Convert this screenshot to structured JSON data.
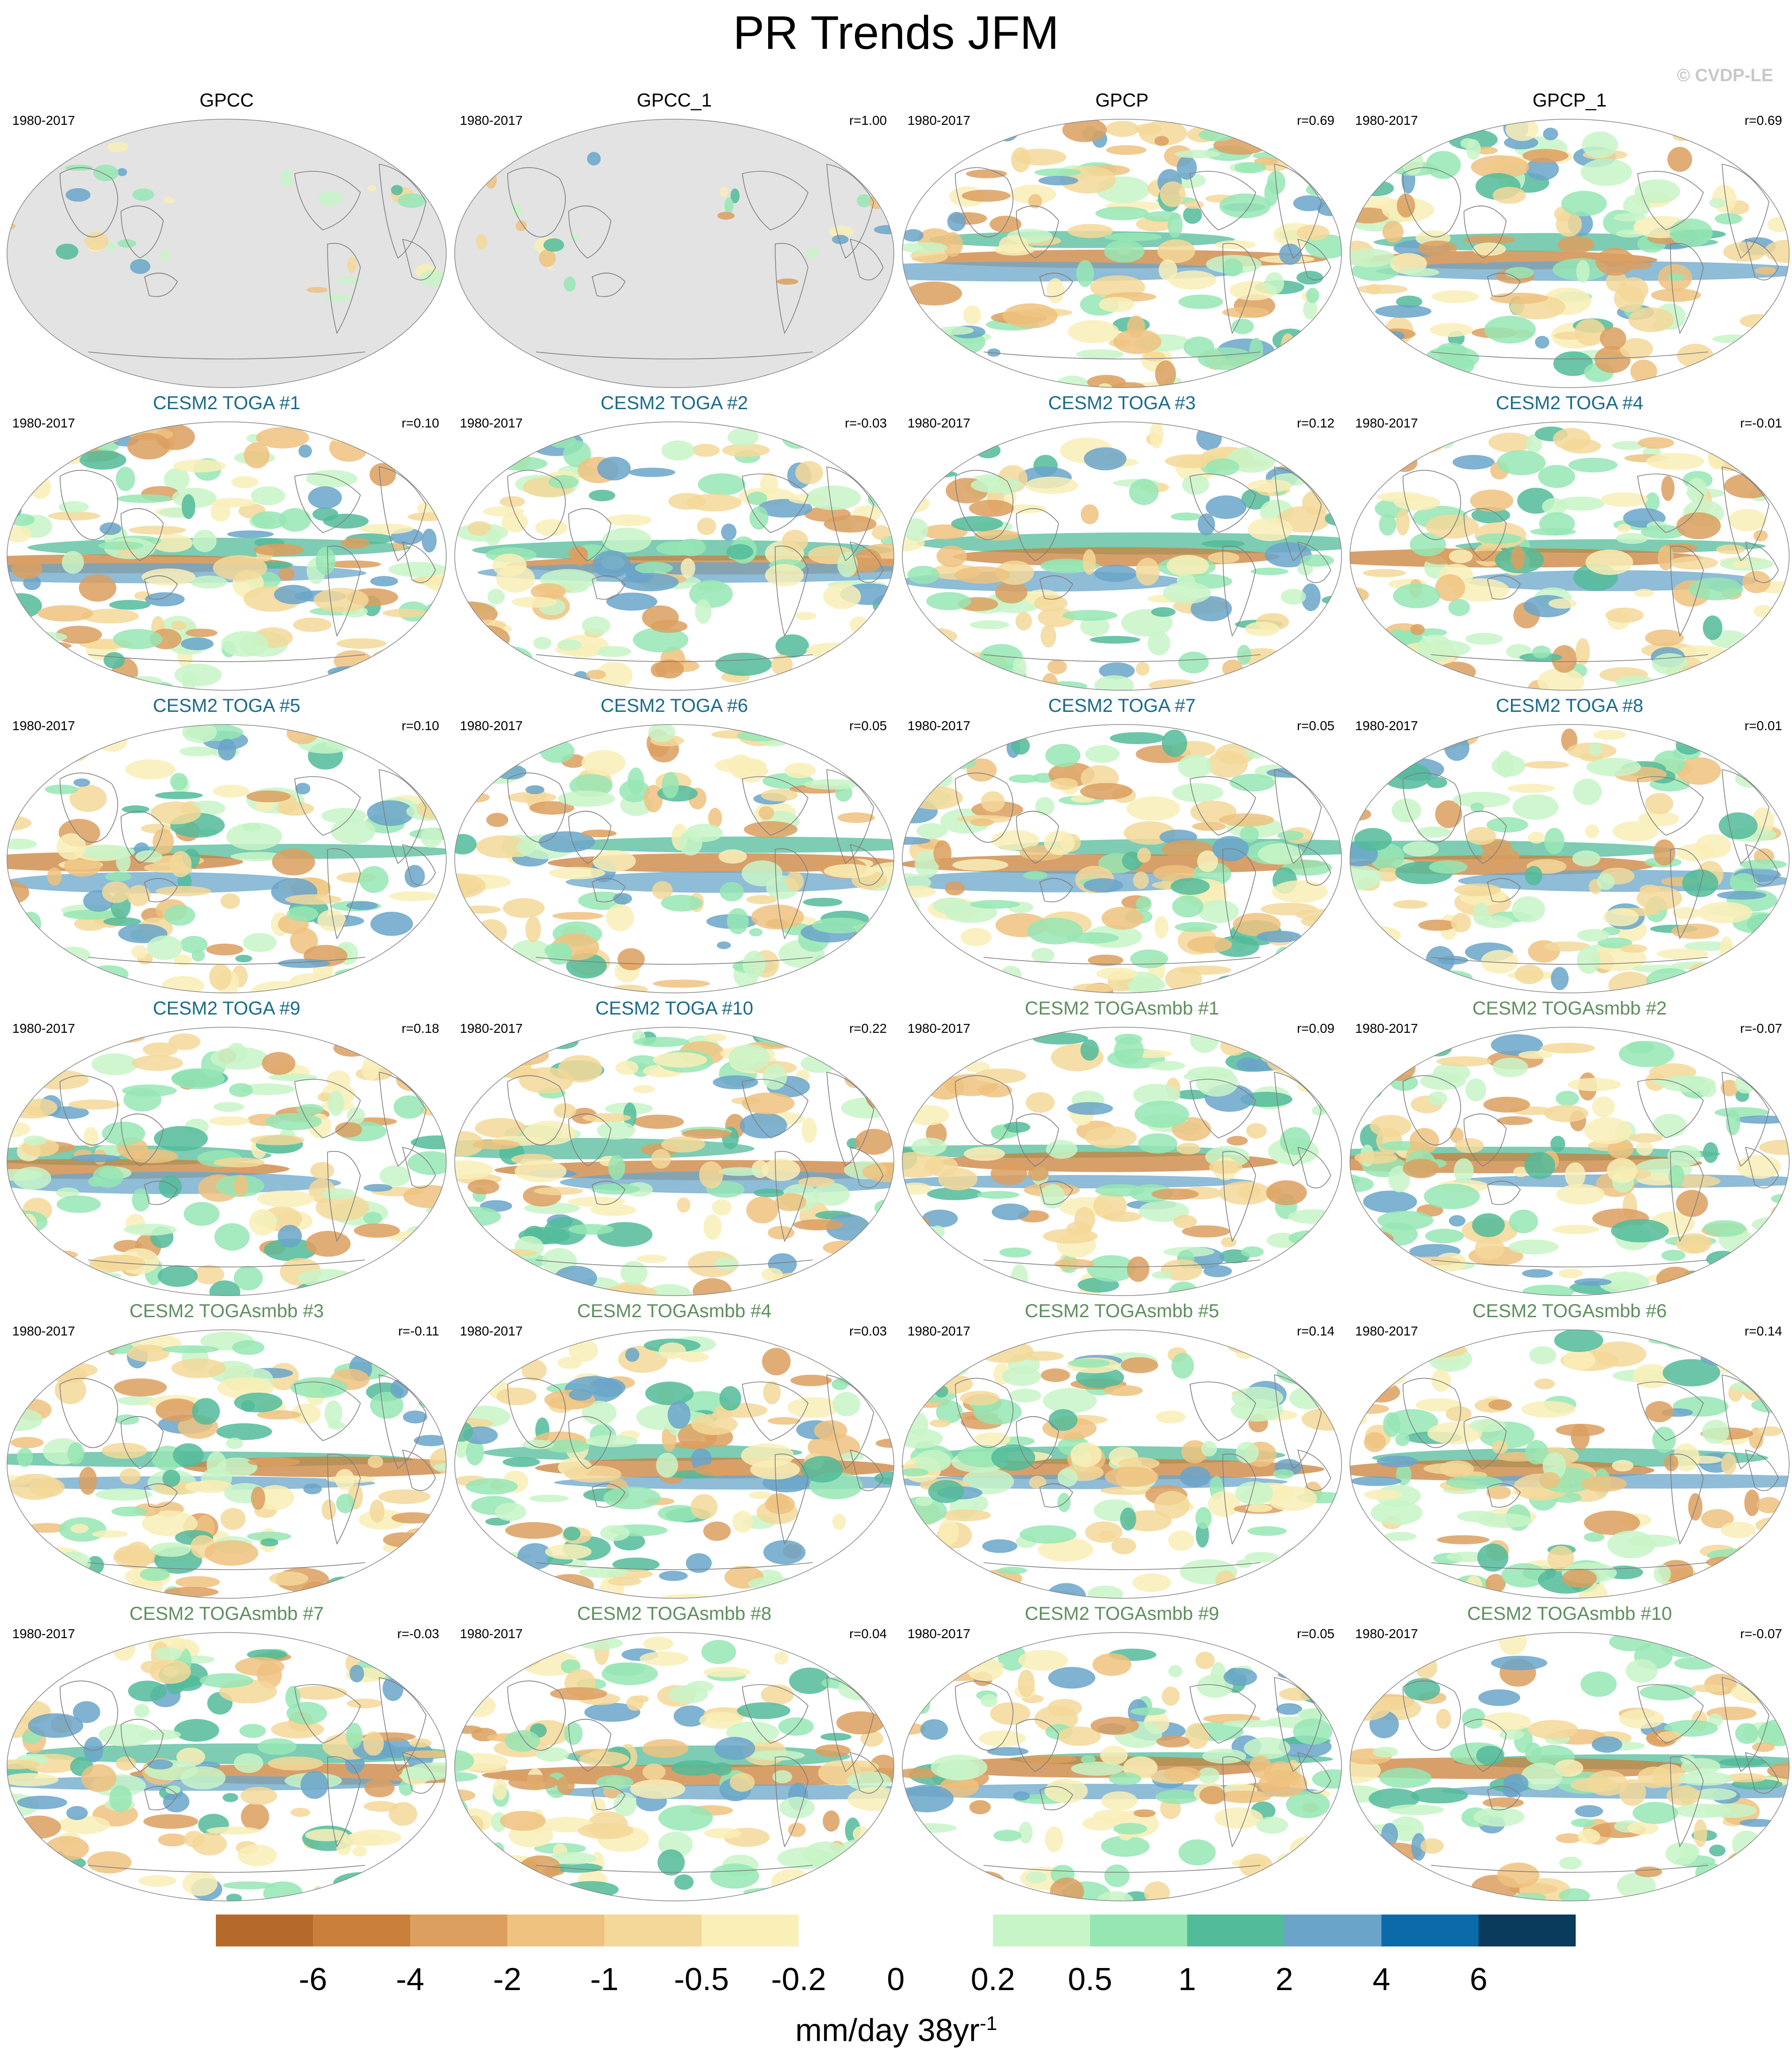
{
  "title": "PR Trends JFM",
  "copyright": "© CVDP-LE",
  "colors": {
    "obs_title": "#000000",
    "toga_title": "#1a6b8a",
    "togasmbb_title": "#5e8f5e",
    "land_mask": "#e3e3e3",
    "coast": "#7f7f7f"
  },
  "panels": [
    {
      "title": "GPCC",
      "period": "1980-2017",
      "r": "",
      "group": "obs",
      "mask": "land"
    },
    {
      "title": "GPCC_1",
      "period": "1980-2017",
      "r": "r=1.00",
      "group": "obs",
      "mask": "land"
    },
    {
      "title": "GPCP",
      "period": "1980-2017",
      "r": "r=0.69",
      "group": "obs",
      "mask": "none"
    },
    {
      "title": "GPCP_1",
      "period": "1980-2017",
      "r": "r=0.69",
      "group": "obs",
      "mask": "none"
    },
    {
      "title": "CESM2 TOGA #1",
      "period": "1980-2017",
      "r": "r=0.10",
      "group": "toga",
      "mask": "none"
    },
    {
      "title": "CESM2 TOGA #2",
      "period": "1980-2017",
      "r": "r=-0.03",
      "group": "toga",
      "mask": "none"
    },
    {
      "title": "CESM2 TOGA #3",
      "period": "1980-2017",
      "r": "r=0.12",
      "group": "toga",
      "mask": "none"
    },
    {
      "title": "CESM2 TOGA #4",
      "period": "1980-2017",
      "r": "r=-0.01",
      "group": "toga",
      "mask": "none"
    },
    {
      "title": "CESM2 TOGA #5",
      "period": "1980-2017",
      "r": "r=0.10",
      "group": "toga",
      "mask": "none"
    },
    {
      "title": "CESM2 TOGA #6",
      "period": "1980-2017",
      "r": "r=0.05",
      "group": "toga",
      "mask": "none"
    },
    {
      "title": "CESM2 TOGA #7",
      "period": "1980-2017",
      "r": "r=0.05",
      "group": "toga",
      "mask": "none"
    },
    {
      "title": "CESM2 TOGA #8",
      "period": "1980-2017",
      "r": "r=0.01",
      "group": "toga",
      "mask": "none"
    },
    {
      "title": "CESM2 TOGA #9",
      "period": "1980-2017",
      "r": "r=0.18",
      "group": "toga",
      "mask": "none"
    },
    {
      "title": "CESM2 TOGA #10",
      "period": "1980-2017",
      "r": "r=0.22",
      "group": "toga",
      "mask": "none"
    },
    {
      "title": "CESM2 TOGAsmbb #1",
      "period": "1980-2017",
      "r": "r=0.09",
      "group": "togasmbb",
      "mask": "none"
    },
    {
      "title": "CESM2 TOGAsmbb #2",
      "period": "1980-2017",
      "r": "r=-0.07",
      "group": "togasmbb",
      "mask": "none"
    },
    {
      "title": "CESM2 TOGAsmbb #3",
      "period": "1980-2017",
      "r": "r=-0.11",
      "group": "togasmbb",
      "mask": "none"
    },
    {
      "title": "CESM2 TOGAsmbb #4",
      "period": "1980-2017",
      "r": "r=0.03",
      "group": "togasmbb",
      "mask": "none"
    },
    {
      "title": "CESM2 TOGAsmbb #5",
      "period": "1980-2017",
      "r": "r=0.14",
      "group": "togasmbb",
      "mask": "none"
    },
    {
      "title": "CESM2 TOGAsmbb #6",
      "period": "1980-2017",
      "r": "r=0.14",
      "group": "togasmbb",
      "mask": "none"
    },
    {
      "title": "CESM2 TOGAsmbb #7",
      "period": "1980-2017",
      "r": "r=-0.03",
      "group": "togasmbb",
      "mask": "none"
    },
    {
      "title": "CESM2 TOGAsmbb #8",
      "period": "1980-2017",
      "r": "r=0.04",
      "group": "togasmbb",
      "mask": "none"
    },
    {
      "title": "CESM2 TOGAsmbb #9",
      "period": "1980-2017",
      "r": "r=0.05",
      "group": "togasmbb",
      "mask": "none"
    },
    {
      "title": "CESM2 TOGAsmbb #10",
      "period": "1980-2017",
      "r": "r=-0.07",
      "group": "togasmbb",
      "mask": "none"
    }
  ],
  "legend": {
    "colors": [
      "#b5692b",
      "#c9803a",
      "#dc9f5f",
      "#eec27f",
      "#f3d899",
      "#f9efb7",
      "#ffffff",
      "#ffffff",
      "#c8f5c8",
      "#96e6b4",
      "#52bb9a",
      "#6aa5c9",
      "#0b6aa8",
      "#0a3a5c"
    ],
    "ticks": [
      "-6",
      "-4",
      "-2",
      "-1",
      "-0.5",
      "-0.2",
      "0",
      "0.2",
      "0.5",
      "1",
      "2",
      "4",
      "6"
    ],
    "units": "mm/day 38yr",
    "units_sup": "-1"
  }
}
